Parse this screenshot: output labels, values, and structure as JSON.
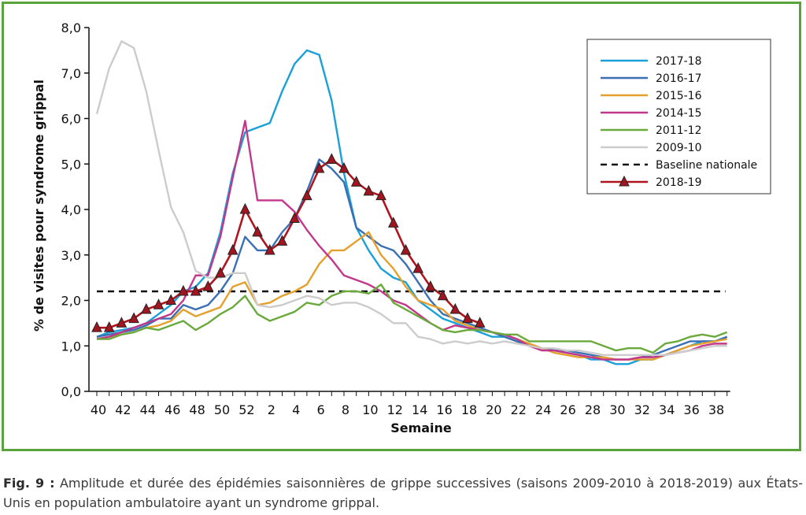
{
  "chart_data": {
    "type": "line",
    "xlabel": "Semaine",
    "ylabel": "% de visites pour syndrome grippal",
    "ylim": [
      0,
      8
    ],
    "yticks": [
      "0,0",
      "1,0",
      "2,0",
      "3,0",
      "4,0",
      "5,0",
      "6,0",
      "7,0",
      "8,0"
    ],
    "xtick_labels": [
      "40",
      "42",
      "44",
      "46",
      "48",
      "50",
      "52",
      "2",
      "4",
      "6",
      "8",
      "10",
      "12",
      "14",
      "16",
      "18",
      "20",
      "22",
      "24",
      "26",
      "28",
      "30",
      "32",
      "34",
      "36",
      "38"
    ],
    "x_weeks": [
      40,
      41,
      42,
      43,
      44,
      45,
      46,
      47,
      48,
      49,
      50,
      51,
      52,
      1,
      2,
      3,
      4,
      5,
      6,
      7,
      8,
      9,
      10,
      11,
      12,
      13,
      14,
      15,
      16,
      17,
      18,
      19,
      20,
      21,
      22,
      23,
      24,
      25,
      26,
      27,
      28,
      29,
      30,
      31,
      32,
      33,
      34,
      35,
      36,
      37,
      38,
      39
    ],
    "grid": false,
    "legend_position": "top-right",
    "series": [
      {
        "name": "2017-18",
        "color": "#1aa0d8",
        "values": [
          1.2,
          1.3,
          1.35,
          1.4,
          1.5,
          1.7,
          1.9,
          2.2,
          2.3,
          2.6,
          3.5,
          4.8,
          5.7,
          5.8,
          5.9,
          6.6,
          7.2,
          7.5,
          7.4,
          6.4,
          4.8,
          3.6,
          3.1,
          2.7,
          2.5,
          2.4,
          2.0,
          1.8,
          1.6,
          1.5,
          1.4,
          1.3,
          1.2,
          1.2,
          1.1,
          1.0,
          0.95,
          0.9,
          0.85,
          0.8,
          0.7,
          0.7,
          0.6,
          0.6,
          0.7,
          0.7,
          0.8,
          0.9,
          1.0,
          1.1,
          1.1,
          1.2
        ]
      },
      {
        "name": "2016-17",
        "color": "#3b6fb3",
        "values": [
          1.2,
          1.25,
          1.3,
          1.35,
          1.45,
          1.6,
          1.6,
          1.9,
          1.8,
          1.9,
          2.2,
          2.6,
          3.4,
          3.1,
          3.1,
          3.5,
          3.8,
          4.4,
          5.1,
          4.9,
          4.6,
          3.6,
          3.4,
          3.2,
          3.1,
          2.8,
          2.4,
          2.0,
          1.7,
          1.6,
          1.5,
          1.4,
          1.3,
          1.2,
          1.1,
          1.0,
          0.95,
          0.9,
          0.9,
          0.85,
          0.8,
          0.75,
          0.7,
          0.7,
          0.75,
          0.8,
          0.9,
          1.0,
          1.1,
          1.1,
          1.1,
          1.2
        ]
      },
      {
        "name": "2015-16",
        "color": "#e4a02b",
        "values": [
          1.15,
          1.2,
          1.25,
          1.3,
          1.4,
          1.45,
          1.55,
          1.8,
          1.65,
          1.75,
          1.85,
          2.3,
          2.4,
          1.9,
          1.95,
          2.1,
          2.2,
          2.35,
          2.8,
          3.1,
          3.1,
          3.3,
          3.5,
          3.0,
          2.7,
          2.3,
          2.0,
          1.9,
          1.8,
          1.55,
          1.45,
          1.35,
          1.3,
          1.25,
          1.15,
          1.05,
          0.95,
          0.85,
          0.8,
          0.75,
          0.75,
          0.75,
          0.7,
          0.7,
          0.7,
          0.7,
          0.8,
          0.9,
          1.0,
          1.05,
          1.1,
          1.15
        ]
      },
      {
        "name": "2014-15",
        "color": "#c2378b",
        "values": [
          1.15,
          1.2,
          1.3,
          1.4,
          1.5,
          1.6,
          1.7,
          2.0,
          2.55,
          2.55,
          3.4,
          4.7,
          5.95,
          4.2,
          4.2,
          4.2,
          3.95,
          3.55,
          3.2,
          2.9,
          2.55,
          2.45,
          2.35,
          2.2,
          2.0,
          1.9,
          1.7,
          1.5,
          1.35,
          1.45,
          1.4,
          1.35,
          1.3,
          1.25,
          1.15,
          1.0,
          0.9,
          0.9,
          0.85,
          0.8,
          0.75,
          0.7,
          0.7,
          0.7,
          0.75,
          0.75,
          0.8,
          0.85,
          0.9,
          1.0,
          1.05,
          1.05
        ]
      },
      {
        "name": "2011-12",
        "color": "#6aaa3c",
        "values": [
          1.15,
          1.15,
          1.25,
          1.3,
          1.4,
          1.35,
          1.45,
          1.55,
          1.35,
          1.5,
          1.7,
          1.85,
          2.1,
          1.7,
          1.55,
          1.65,
          1.75,
          1.95,
          1.9,
          2.1,
          2.2,
          2.2,
          2.15,
          2.35,
          1.95,
          1.8,
          1.65,
          1.5,
          1.35,
          1.3,
          1.35,
          1.35,
          1.3,
          1.25,
          1.25,
          1.1,
          1.1,
          1.1,
          1.1,
          1.1,
          1.1,
          1.0,
          0.9,
          0.95,
          0.95,
          0.85,
          1.05,
          1.1,
          1.2,
          1.25,
          1.2,
          1.3
        ]
      },
      {
        "name": "2009-10",
        "color": "#cccccc",
        "values": [
          6.1,
          7.1,
          7.7,
          7.55,
          6.6,
          5.3,
          4.05,
          3.5,
          2.65,
          2.5,
          2.5,
          2.6,
          2.6,
          1.9,
          1.85,
          1.9,
          2.0,
          2.1,
          2.05,
          1.9,
          1.95,
          1.95,
          1.85,
          1.7,
          1.5,
          1.5,
          1.2,
          1.15,
          1.05,
          1.1,
          1.05,
          1.1,
          1.05,
          1.1,
          1.05,
          1.0,
          0.95,
          0.95,
          0.9,
          0.9,
          0.85,
          0.8,
          0.8,
          0.8,
          0.8,
          0.8,
          0.8,
          0.85,
          0.9,
          0.95,
          1.0,
          1.0
        ]
      },
      {
        "name": "2018-19",
        "color": "#b0151f",
        "marker": "triangle",
        "values": [
          1.4,
          1.4,
          1.5,
          1.6,
          1.8,
          1.9,
          2.0,
          2.2,
          2.2,
          2.3,
          2.6,
          3.1,
          4.0,
          3.5,
          3.1,
          3.3,
          3.8,
          4.3,
          4.9,
          5.1,
          4.9,
          4.6,
          4.4,
          4.3,
          3.7,
          3.1,
          2.7,
          2.3,
          2.1,
          1.8,
          1.6,
          1.5
        ]
      }
    ],
    "baseline": {
      "name": "Baseline nationale",
      "value": 2.2,
      "color": "#111111"
    }
  },
  "caption": {
    "prefix": "Fig. 9 :",
    "text": " Amplitude et durée des épidémies saisonnières de grippe successives (saisons 2009-2010 à 2018-2019) aux États-Unis en population ambulatoire ayant un syndrome grippal."
  },
  "colors": {
    "frame": "#5aa23c"
  }
}
